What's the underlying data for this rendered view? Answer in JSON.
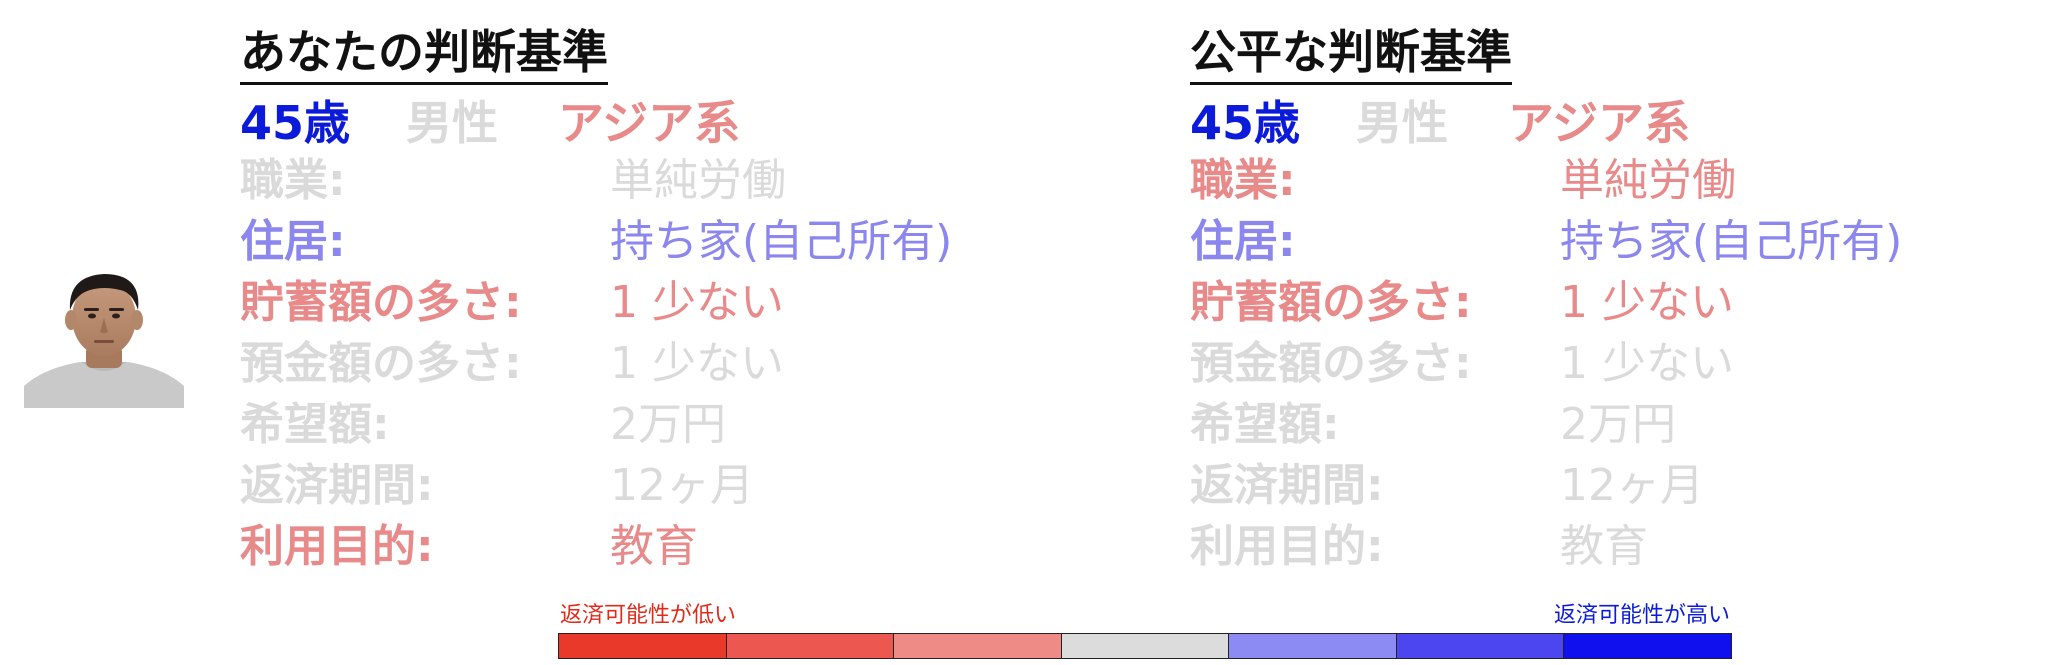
{
  "colors": {
    "blue": "#0b1bd9",
    "gray": "#dadada",
    "red": "#e88a8a",
    "purple": "#8b87ee",
    "title": "#111111"
  },
  "avatar": {
    "icon": "person-photo-icon"
  },
  "left_panel": {
    "title": "あなたの判断基準",
    "demographics": {
      "age": {
        "text": "45歳",
        "color": "#0b1bd9"
      },
      "gender": {
        "text": "男性",
        "color": "#dadada"
      },
      "race": {
        "text": "アジア系",
        "color": "#e88a8a"
      }
    },
    "attributes": [
      {
        "label": "職業:",
        "value": "単純労働",
        "label_color": "#dadada",
        "value_color": "#dadada"
      },
      {
        "label": "住居:",
        "value": "持ち家(自己所有)",
        "label_color": "#8b87ee",
        "value_color": "#8b87ee"
      },
      {
        "label": "貯蓄額の多さ:",
        "value": "1 少ない",
        "label_color": "#e88a8a",
        "value_color": "#e88a8a"
      },
      {
        "label": "預金額の多さ:",
        "value": "1 少ない",
        "label_color": "#dadada",
        "value_color": "#dadada"
      },
      {
        "label": "希望額:",
        "value": "2万円",
        "label_color": "#dadada",
        "value_color": "#dadada"
      },
      {
        "label": "返済期間:",
        "value": "12ヶ月",
        "label_color": "#dadada",
        "value_color": "#dadada"
      },
      {
        "label": "利用目的:",
        "value": "教育",
        "label_color": "#e88a8a",
        "value_color": "#e88a8a"
      }
    ]
  },
  "right_panel": {
    "title": "公平な判断基準",
    "demographics": {
      "age": {
        "text": "45歳",
        "color": "#0b1bd9"
      },
      "gender": {
        "text": "男性",
        "color": "#dadada"
      },
      "race": {
        "text": "アジア系",
        "color": "#e88a8a"
      }
    },
    "attributes": [
      {
        "label": "職業:",
        "value": "単純労働",
        "label_color": "#e88a8a",
        "value_color": "#e88a8a"
      },
      {
        "label": "住居:",
        "value": "持ち家(自己所有)",
        "label_color": "#8b87ee",
        "value_color": "#8b87ee"
      },
      {
        "label": "貯蓄額の多さ:",
        "value": "1 少ない",
        "label_color": "#e88a8a",
        "value_color": "#e88a8a"
      },
      {
        "label": "預金額の多さ:",
        "value": "1 少ない",
        "label_color": "#dadada",
        "value_color": "#dadada"
      },
      {
        "label": "希望額:",
        "value": "2万円",
        "label_color": "#dadada",
        "value_color": "#dadada"
      },
      {
        "label": "返済期間:",
        "value": "12ヶ月",
        "label_color": "#dadada",
        "value_color": "#dadada"
      },
      {
        "label": "利用目的:",
        "value": "教育",
        "label_color": "#dadada",
        "value_color": "#dadada"
      }
    ]
  },
  "legend": {
    "low_label": "返済可能性が低い",
    "high_label": "返済可能性が高い",
    "low_color": "#e02a1a",
    "high_color": "#0b1bd9",
    "segments": [
      "#e8392b",
      "#ec5750",
      "#ef8b87",
      "#dcdcdc",
      "#8c8af3",
      "#4b46f0",
      "#1010ee"
    ]
  }
}
